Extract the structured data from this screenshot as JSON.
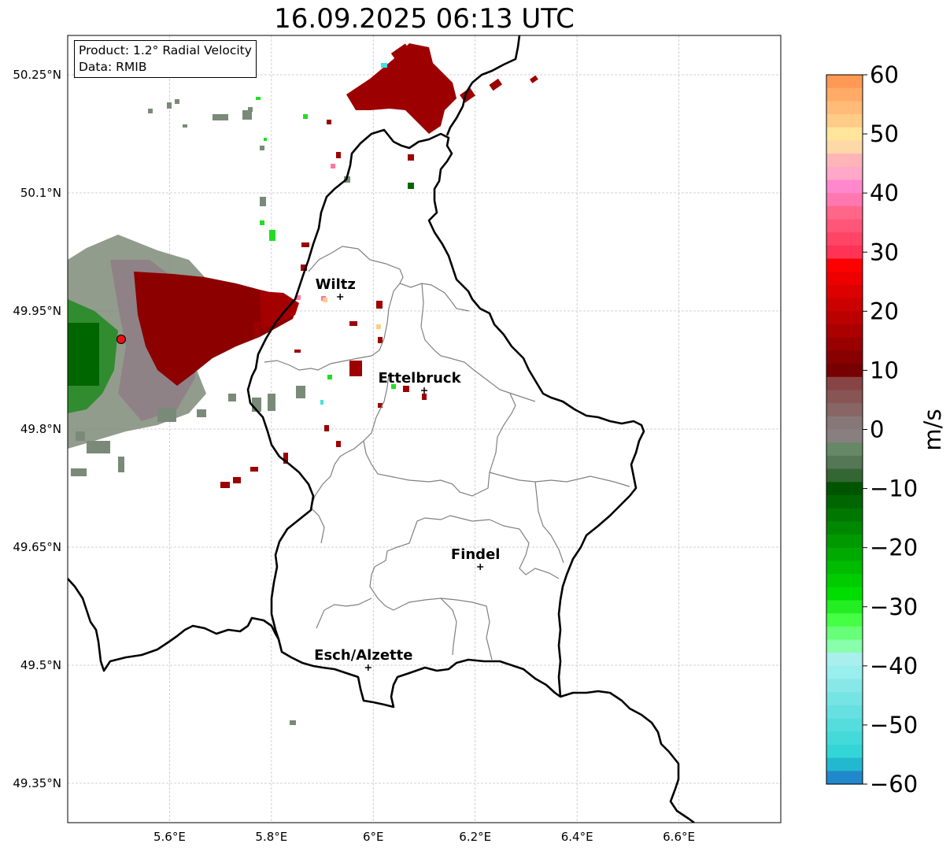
{
  "title": "16.09.2025 06:13 UTC",
  "info_box": {
    "product": "Product: 1.2° Radial Velocity",
    "data_source": "Data: RMIB"
  },
  "axes": {
    "longitude_ticks": [
      {
        "value": 5.6,
        "label": "5.6°E"
      },
      {
        "value": 5.8,
        "label": "5.8°E"
      },
      {
        "value": 6.0,
        "label": "6°E"
      },
      {
        "value": 6.2,
        "label": "6.2°E"
      },
      {
        "value": 6.4,
        "label": "6.4°E"
      },
      {
        "value": 6.6,
        "label": "6.6°E"
      }
    ],
    "latitude_ticks": [
      {
        "value": 50.25,
        "label": "50.25°N"
      },
      {
        "value": 50.1,
        "label": "50.1°N"
      },
      {
        "value": 49.95,
        "label": "49.95°N"
      },
      {
        "value": 49.8,
        "label": "49.8°N"
      },
      {
        "value": 49.65,
        "label": "49.65°N"
      },
      {
        "value": 49.5,
        "label": "49.5°N"
      },
      {
        "value": 49.35,
        "label": "49.35°N"
      }
    ],
    "lon_range": [
      5.4,
      6.8
    ],
    "lat_range": [
      49.3,
      50.3
    ],
    "grid": true
  },
  "cities": [
    {
      "name": "Wiltz",
      "lon": 5.935,
      "lat": 49.968
    },
    {
      "name": "Ettelbruck",
      "lon": 6.1,
      "lat": 49.849
    },
    {
      "name": "Findel",
      "lon": 6.21,
      "lat": 49.625
    },
    {
      "name": "Esch/Alzette",
      "lon": 5.99,
      "lat": 49.497
    }
  ],
  "radar": {
    "name": "",
    "lon": 5.505,
    "lat": 49.914,
    "color": "#e8101a"
  },
  "colorbar": {
    "label": "m/s",
    "min": -60,
    "max": 60,
    "ticks": [
      {
        "value": 60,
        "label": "60"
      },
      {
        "value": 50,
        "label": "50"
      },
      {
        "value": 40,
        "label": "40"
      },
      {
        "value": 30,
        "label": "30"
      },
      {
        "value": 20,
        "label": "20"
      },
      {
        "value": 10,
        "label": "10"
      },
      {
        "value": 0,
        "label": "0"
      },
      {
        "value": -10,
        "label": "−10"
      },
      {
        "value": -20,
        "label": "−20"
      },
      {
        "value": -30,
        "label": "−30"
      },
      {
        "value": -40,
        "label": "−40"
      },
      {
        "value": -50,
        "label": "−50"
      },
      {
        "value": -60,
        "label": "−60"
      }
    ],
    "colors_top_to_bottom": [
      "#ff9955",
      "#ffaa66",
      "#ffbb77",
      "#ffcc88",
      "#ffe59a",
      "#ffd8a8",
      "#ffb5b8",
      "#ffa8c8",
      "#ff88cc",
      "#ff77b0",
      "#ff6688",
      "#ff5577",
      "#ff4466",
      "#ff3355",
      "#ff0000",
      "#ee0000",
      "#dd0000",
      "#cc0000",
      "#bb0000",
      "#aa0000",
      "#990000",
      "#880000",
      "#770000",
      "#884444",
      "#885555",
      "#886666",
      "#887777",
      "#888080",
      "#668866",
      "#557755",
      "#336633",
      "#005500",
      "#006600",
      "#007700",
      "#008800",
      "#009900",
      "#00aa00",
      "#00bb00",
      "#00cc00",
      "#00dd00",
      "#22ee22",
      "#44ff44",
      "#66ff77",
      "#88ffaa",
      "#aaeeee",
      "#99eeee",
      "#88e8e8",
      "#77e4e4",
      "#66e0e0",
      "#55dddd",
      "#44dada",
      "#33d6d6",
      "#22b8d0",
      "#2288cc"
    ]
  },
  "palette": {
    "recede_dark": "#8b0000",
    "recede": "#a80000",
    "approach": "#007700",
    "zero": "#7a8a7a",
    "clutter": "#8a7a80",
    "border_country": "#000000",
    "border_canton": "#808080",
    "grid": "#c0c0c0"
  }
}
